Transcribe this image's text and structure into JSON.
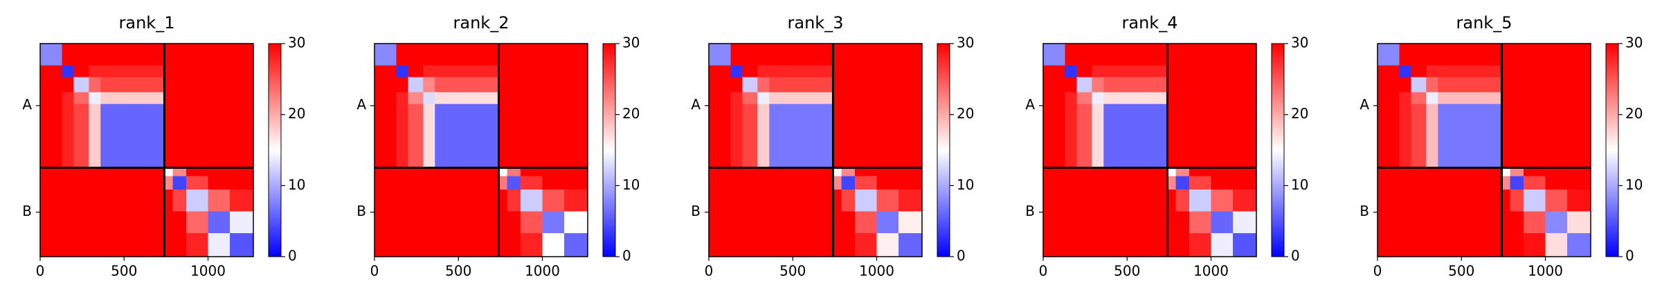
{
  "chart_data": [
    {
      "type": "heatmap",
      "title": "rank_1",
      "bins": [
        0,
        130,
        200,
        290,
        360,
        740,
        790,
        870,
        1000,
        1130,
        1270
      ],
      "values": [
        [
          8,
          30,
          30,
          30,
          30,
          30,
          30,
          30,
          30,
          30
        ],
        [
          30,
          3,
          30,
          28,
          28,
          30,
          30,
          30,
          30,
          30
        ],
        [
          30,
          30,
          12,
          24,
          26,
          30,
          30,
          30,
          30,
          30
        ],
        [
          30,
          28,
          24,
          14,
          18,
          30,
          30,
          30,
          30,
          30
        ],
        [
          30,
          28,
          26,
          18,
          6,
          30,
          30,
          30,
          30,
          30
        ],
        [
          30,
          30,
          30,
          30,
          30,
          15,
          22,
          30,
          30,
          30
        ],
        [
          30,
          30,
          30,
          30,
          30,
          22,
          4,
          26,
          30,
          30
        ],
        [
          30,
          30,
          30,
          30,
          30,
          30,
          26,
          12,
          24,
          28
        ],
        [
          30,
          30,
          30,
          30,
          30,
          30,
          30,
          24,
          6,
          14
        ],
        [
          30,
          30,
          30,
          30,
          30,
          30,
          30,
          28,
          14,
          5
        ]
      ],
      "xlim": [
        0,
        1270
      ],
      "ylim": [
        1270,
        0
      ],
      "xticks": [
        0,
        500,
        1000
      ],
      "yticks": [
        {
          "value": 370,
          "label": "A"
        },
        {
          "value": 1005,
          "label": "B"
        }
      ],
      "clim": [
        0,
        30
      ],
      "cticks": [
        0,
        10,
        20,
        30
      ],
      "colormap": "bwr",
      "chain_breaks": [
        740
      ]
    },
    {
      "type": "heatmap",
      "title": "rank_2",
      "bins": [
        0,
        130,
        200,
        290,
        360,
        740,
        790,
        870,
        1000,
        1130,
        1270
      ],
      "values": [
        [
          8,
          30,
          30,
          30,
          30,
          30,
          30,
          30,
          30,
          30
        ],
        [
          30,
          3,
          30,
          28,
          28,
          30,
          30,
          30,
          30,
          30
        ],
        [
          30,
          30,
          12,
          22,
          25,
          30,
          30,
          30,
          30,
          30
        ],
        [
          30,
          28,
          22,
          13,
          17,
          30,
          30,
          30,
          30,
          30
        ],
        [
          30,
          28,
          25,
          17,
          6,
          30,
          30,
          30,
          30,
          30
        ],
        [
          30,
          30,
          30,
          30,
          30,
          15,
          23,
          30,
          30,
          30
        ],
        [
          30,
          30,
          30,
          30,
          30,
          23,
          5,
          27,
          30,
          30
        ],
        [
          30,
          30,
          30,
          30,
          30,
          30,
          27,
          12,
          25,
          28
        ],
        [
          30,
          30,
          30,
          30,
          30,
          30,
          30,
          25,
          7,
          15
        ],
        [
          30,
          30,
          30,
          30,
          30,
          30,
          30,
          28,
          15,
          6
        ]
      ],
      "xlim": [
        0,
        1270
      ],
      "ylim": [
        1270,
        0
      ],
      "xticks": [
        0,
        500,
        1000
      ],
      "yticks": [
        {
          "value": 370,
          "label": "A"
        },
        {
          "value": 1005,
          "label": "B"
        }
      ],
      "clim": [
        0,
        30
      ],
      "cticks": [
        0,
        10,
        20,
        30
      ],
      "colormap": "bwr",
      "chain_breaks": [
        740
      ]
    },
    {
      "type": "heatmap",
      "title": "rank_3",
      "bins": [
        0,
        130,
        200,
        290,
        360,
        740,
        790,
        870,
        1000,
        1130,
        1270
      ],
      "values": [
        [
          8,
          30,
          30,
          30,
          30,
          30,
          30,
          30,
          30,
          30
        ],
        [
          30,
          3,
          30,
          28,
          28,
          30,
          30,
          30,
          30,
          30
        ],
        [
          30,
          30,
          12,
          24,
          26,
          30,
          30,
          30,
          30,
          30
        ],
        [
          30,
          28,
          24,
          14,
          18,
          30,
          30,
          30,
          30,
          30
        ],
        [
          30,
          28,
          26,
          18,
          7,
          30,
          30,
          30,
          30,
          30
        ],
        [
          30,
          30,
          30,
          30,
          30,
          15,
          22,
          30,
          30,
          30
        ],
        [
          30,
          30,
          30,
          30,
          30,
          22,
          4,
          26,
          30,
          30
        ],
        [
          30,
          30,
          30,
          30,
          30,
          30,
          26,
          12,
          25,
          28
        ],
        [
          30,
          30,
          30,
          30,
          30,
          30,
          30,
          25,
          7,
          16
        ],
        [
          30,
          30,
          30,
          30,
          30,
          30,
          30,
          28,
          16,
          6
        ]
      ],
      "xlim": [
        0,
        1270
      ],
      "ylim": [
        1270,
        0
      ],
      "xticks": [
        0,
        500,
        1000
      ],
      "yticks": [
        {
          "value": 370,
          "label": "A"
        },
        {
          "value": 1005,
          "label": "B"
        }
      ],
      "clim": [
        0,
        30
      ],
      "cticks": [
        0,
        10,
        20,
        30
      ],
      "colormap": "bwr",
      "chain_breaks": [
        740
      ]
    },
    {
      "type": "heatmap",
      "title": "rank_4",
      "bins": [
        0,
        130,
        200,
        290,
        360,
        740,
        790,
        870,
        1000,
        1130,
        1270
      ],
      "values": [
        [
          8,
          30,
          30,
          30,
          30,
          30,
          30,
          30,
          30,
          30
        ],
        [
          30,
          3,
          30,
          28,
          28,
          30,
          30,
          30,
          30,
          30
        ],
        [
          30,
          30,
          12,
          23,
          25,
          30,
          30,
          30,
          30,
          30
        ],
        [
          30,
          28,
          23,
          14,
          17,
          30,
          30,
          30,
          30,
          30
        ],
        [
          30,
          28,
          25,
          17,
          6,
          30,
          30,
          30,
          30,
          30
        ],
        [
          30,
          30,
          30,
          30,
          30,
          15,
          22,
          30,
          30,
          30
        ],
        [
          30,
          30,
          30,
          30,
          30,
          22,
          4,
          26,
          30,
          30
        ],
        [
          30,
          30,
          30,
          30,
          30,
          30,
          26,
          12,
          24,
          28
        ],
        [
          30,
          30,
          30,
          30,
          30,
          30,
          30,
          24,
          6,
          14
        ],
        [
          30,
          30,
          30,
          30,
          30,
          30,
          30,
          28,
          14,
          5
        ]
      ],
      "xlim": [
        0,
        1270
      ],
      "ylim": [
        1270,
        0
      ],
      "xticks": [
        0,
        500,
        1000
      ],
      "yticks": [
        {
          "value": 370,
          "label": "A"
        },
        {
          "value": 1005,
          "label": "B"
        }
      ],
      "clim": [
        0,
        30
      ],
      "cticks": [
        0,
        10,
        20,
        30
      ],
      "colormap": "bwr",
      "chain_breaks": [
        740
      ]
    },
    {
      "type": "heatmap",
      "title": "rank_5",
      "bins": [
        0,
        130,
        200,
        290,
        360,
        740,
        790,
        870,
        1000,
        1130,
        1270
      ],
      "values": [
        [
          8,
          30,
          30,
          30,
          30,
          30,
          30,
          30,
          30,
          30
        ],
        [
          30,
          3,
          30,
          28,
          28,
          30,
          30,
          30,
          30,
          30
        ],
        [
          30,
          30,
          12,
          24,
          26,
          30,
          30,
          30,
          30,
          30
        ],
        [
          30,
          28,
          24,
          14,
          19,
          30,
          30,
          30,
          30,
          30
        ],
        [
          30,
          28,
          26,
          19,
          7,
          30,
          30,
          30,
          30,
          30
        ],
        [
          30,
          30,
          30,
          30,
          30,
          15,
          22,
          30,
          30,
          30
        ],
        [
          30,
          30,
          30,
          30,
          30,
          22,
          4,
          26,
          30,
          30
        ],
        [
          30,
          30,
          30,
          30,
          30,
          30,
          26,
          12,
          25,
          29
        ],
        [
          30,
          30,
          30,
          30,
          30,
          30,
          30,
          25,
          8,
          17
        ],
        [
          30,
          30,
          30,
          30,
          30,
          30,
          30,
          29,
          17,
          7
        ]
      ],
      "xlim": [
        0,
        1270
      ],
      "ylim": [
        1270,
        0
      ],
      "xticks": [
        0,
        500,
        1000
      ],
      "yticks": [
        {
          "value": 370,
          "label": "A"
        },
        {
          "value": 1005,
          "label": "B"
        }
      ],
      "clim": [
        0,
        30
      ],
      "cticks": [
        0,
        10,
        20,
        30
      ],
      "colormap": "bwr",
      "chain_breaks": [
        740
      ]
    }
  ]
}
